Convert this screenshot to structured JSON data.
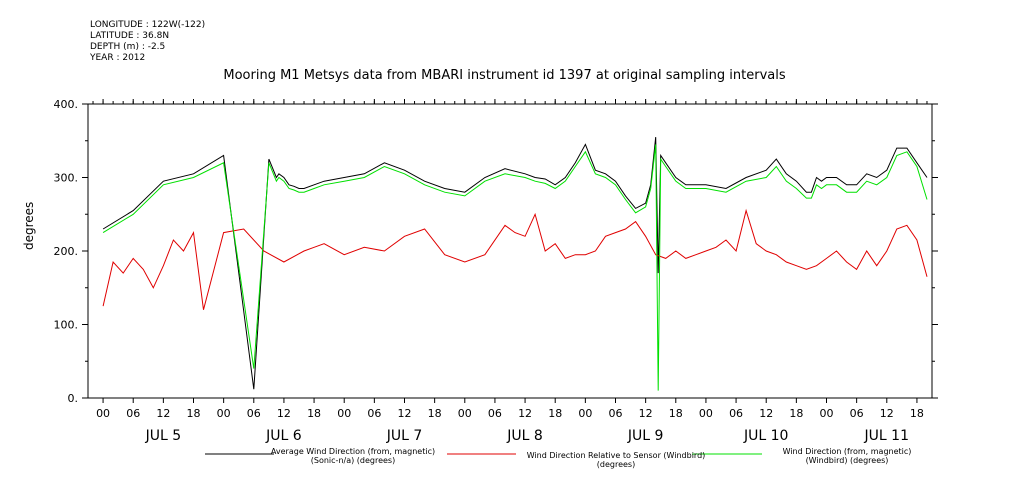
{
  "metadata": {
    "longitude": "LONGITUDE : 122W(-122)",
    "latitude": "LATITUDE : 36.8N",
    "depth": "DEPTH (m) : -2.5",
    "year": "YEAR : 2012"
  },
  "chart_data": {
    "type": "line",
    "title": "Mooring M1 Metsys data from MBARI instrument id 1397 at original sampling intervals",
    "ylabel": "degrees",
    "xlabel": "",
    "ylim": [
      0,
      400
    ],
    "y_ticks": [
      "0.",
      "100.",
      "200.",
      "300.",
      "400."
    ],
    "x_hour_ticks": [
      "00",
      "06",
      "12",
      "18",
      "00",
      "06",
      "12",
      "18",
      "00",
      "06",
      "12",
      "18",
      "00",
      "06",
      "12",
      "18",
      "00",
      "06",
      "12",
      "18",
      "00",
      "06",
      "12",
      "18",
      "00",
      "06",
      "12",
      "18"
    ],
    "x_day_labels": [
      "JUL  5",
      "JUL  6",
      "JUL  7",
      "JUL  8",
      "JUL  9",
      "JUL 10",
      "JUL 11"
    ],
    "x_range_hours": [
      -3,
      165
    ],
    "grid": false,
    "legend_position": "bottom",
    "series": [
      {
        "name": "Average Wind Direction (from, magnetic) (Sonic-n/a) (degrees)",
        "color": "#000000",
        "x": [
          0,
          6,
          12,
          18,
          24,
          30,
          33,
          34.5,
          35,
          36,
          37,
          38,
          39,
          40,
          42,
          44,
          48,
          52,
          56,
          60,
          64,
          68,
          72,
          76,
          80,
          84,
          86,
          88,
          90,
          92,
          94,
          96,
          98,
          100,
          102,
          104,
          106,
          108,
          109,
          110,
          110.5,
          111,
          112,
          114,
          116,
          120,
          124,
          128,
          132,
          134,
          136,
          138,
          140,
          141,
          142,
          143,
          144,
          146,
          148,
          150,
          152,
          154,
          156,
          158,
          160,
          162,
          164
        ],
        "values": [
          230,
          255,
          295,
          305,
          330,
          12,
          325,
          300,
          305,
          300,
          290,
          288,
          285,
          285,
          290,
          295,
          300,
          305,
          320,
          310,
          295,
          285,
          280,
          300,
          312,
          305,
          300,
          298,
          290,
          300,
          320,
          345,
          310,
          305,
          295,
          275,
          258,
          265,
          290,
          355,
          170,
          330,
          320,
          300,
          290,
          290,
          285,
          300,
          310,
          325,
          305,
          295,
          280,
          280,
          300,
          295,
          300,
          300,
          290,
          290,
          305,
          300,
          310,
          340,
          340,
          320,
          300
        ]
      },
      {
        "name": "Wind Direction Relative to Sensor (Windbird) (degrees)",
        "color": "#e00000",
        "x": [
          0,
          2,
          4,
          6,
          8,
          10,
          12,
          14,
          16,
          18,
          20,
          24,
          28,
          32,
          36,
          40,
          42,
          44,
          48,
          52,
          56,
          60,
          64,
          68,
          72,
          76,
          80,
          82,
          84,
          86,
          88,
          90,
          92,
          94,
          96,
          98,
          100,
          102,
          104,
          106,
          108,
          110,
          112,
          114,
          116,
          118,
          120,
          122,
          124,
          126,
          128,
          130,
          132,
          134,
          136,
          138,
          140,
          142,
          144,
          146,
          148,
          150,
          152,
          154,
          156,
          158,
          160,
          162,
          164
        ],
        "values": [
          125,
          185,
          170,
          190,
          175,
          150,
          180,
          215,
          200,
          225,
          120,
          225,
          230,
          200,
          185,
          200,
          205,
          210,
          195,
          205,
          200,
          220,
          230,
          195,
          185,
          195,
          235,
          225,
          220,
          250,
          200,
          210,
          190,
          195,
          195,
          200,
          220,
          225,
          230,
          240,
          220,
          195,
          190,
          200,
          190,
          195,
          200,
          205,
          215,
          200,
          255,
          210,
          200,
          195,
          185,
          180,
          175,
          180,
          190,
          200,
          185,
          175,
          200,
          180,
          200,
          230,
          235,
          215,
          165
        ]
      },
      {
        "name": "Wind Direction (from, magnetic) (Windbird) (degrees)",
        "color": "#00e000",
        "x": [
          0,
          6,
          12,
          18,
          24,
          30,
          33,
          34.5,
          35,
          36,
          37,
          38,
          39,
          40,
          42,
          44,
          48,
          52,
          56,
          60,
          64,
          68,
          72,
          76,
          80,
          84,
          86,
          88,
          90,
          92,
          94,
          96,
          98,
          100,
          102,
          104,
          106,
          108,
          109,
          110,
          110.5,
          111,
          112,
          114,
          116,
          120,
          124,
          128,
          132,
          134,
          136,
          138,
          140,
          141,
          142,
          143,
          144,
          146,
          148,
          150,
          152,
          154,
          156,
          158,
          160,
          162,
          164
        ],
        "values": [
          225,
          250,
          290,
          300,
          320,
          40,
          320,
          295,
          300,
          295,
          285,
          283,
          280,
          280,
          285,
          290,
          295,
          300,
          315,
          305,
          290,
          280,
          275,
          295,
          305,
          300,
          295,
          292,
          285,
          295,
          315,
          335,
          305,
          300,
          290,
          270,
          252,
          260,
          285,
          345,
          10,
          325,
          315,
          295,
          285,
          285,
          280,
          295,
          300,
          315,
          295,
          285,
          272,
          272,
          290,
          285,
          290,
          290,
          280,
          280,
          295,
          290,
          300,
          330,
          335,
          315,
          270
        ]
      }
    ]
  }
}
